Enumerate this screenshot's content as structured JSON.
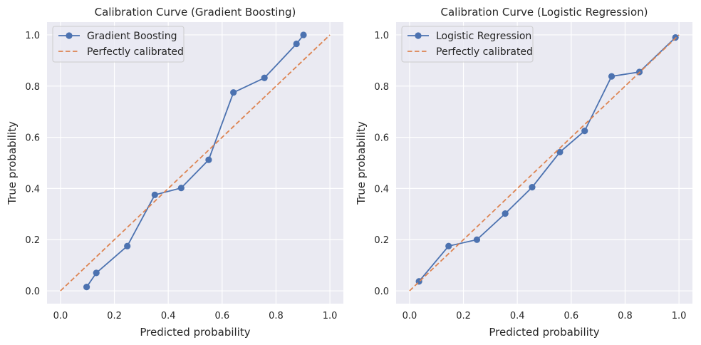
{
  "colors": {
    "axes_bg": "#eaeaf2",
    "grid": "#ffffff",
    "series": "#4c72b0",
    "reference": "#dd8452"
  },
  "chart_data": [
    {
      "type": "line",
      "title": "Calibration Curve (Gradient Boosting)",
      "xlabel": "Predicted probability",
      "ylabel": "True probability",
      "xlim": [
        -0.05,
        1.05
      ],
      "ylim": [
        -0.05,
        1.05
      ],
      "xticks": [
        "0.0",
        "0.2",
        "0.4",
        "0.6",
        "0.8",
        "1.0"
      ],
      "yticks": [
        "0.0",
        "0.2",
        "0.4",
        "0.6",
        "0.8",
        "1.0"
      ],
      "grid": true,
      "legend": "top-left",
      "series": [
        {
          "name": "Gradient Boosting",
          "style": "line-markers",
          "x": [
            0.097,
            0.133,
            0.248,
            0.35,
            0.448,
            0.55,
            0.642,
            0.757,
            0.876,
            0.902
          ],
          "y": [
            0.015,
            0.07,
            0.175,
            0.375,
            0.402,
            0.512,
            0.775,
            0.832,
            0.965,
            1.0
          ]
        },
        {
          "name": "Perfectly calibrated",
          "style": "dashed",
          "x": [
            0.0,
            1.0
          ],
          "y": [
            0.0,
            1.0
          ]
        }
      ]
    },
    {
      "type": "line",
      "title": "Calibration Curve (Logistic Regression)",
      "xlabel": "Predicted probability",
      "ylabel": "True probability",
      "xlim": [
        -0.05,
        1.05
      ],
      "ylim": [
        -0.05,
        1.05
      ],
      "xticks": [
        "0.0",
        "0.2",
        "0.4",
        "0.6",
        "0.8",
        "1.0"
      ],
      "yticks": [
        "0.0",
        "0.2",
        "0.4",
        "0.6",
        "0.8",
        "1.0"
      ],
      "grid": true,
      "legend": "top-left",
      "series": [
        {
          "name": "Logistic Regression",
          "style": "line-markers",
          "x": [
            0.035,
            0.145,
            0.25,
            0.355,
            0.455,
            0.558,
            0.65,
            0.75,
            0.853,
            0.987
          ],
          "y": [
            0.037,
            0.175,
            0.2,
            0.302,
            0.405,
            0.542,
            0.625,
            0.838,
            0.855,
            0.99
          ]
        },
        {
          "name": "Perfectly calibrated",
          "style": "dashed",
          "x": [
            0.0,
            1.0
          ],
          "y": [
            0.0,
            1.0
          ]
        }
      ]
    }
  ]
}
